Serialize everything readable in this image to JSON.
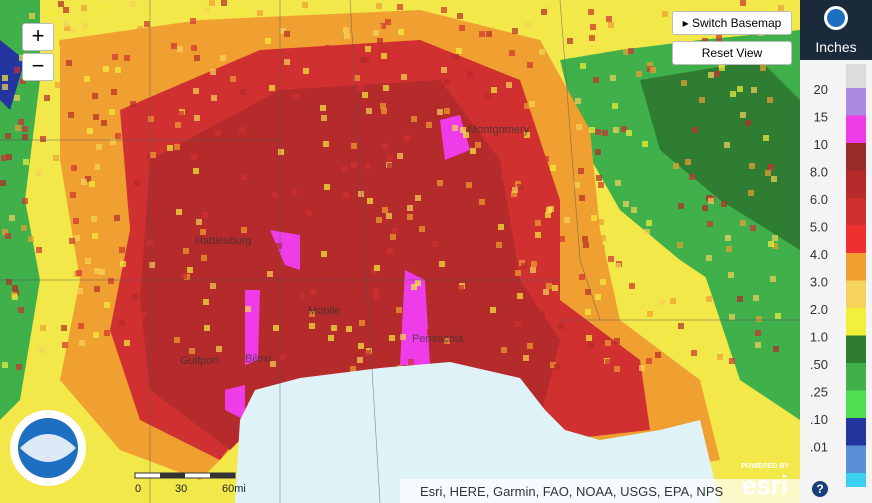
{
  "map": {
    "controls": {
      "zoom_in": "+",
      "zoom_out": "−",
      "switch_basemap": "Switch Basemap",
      "reset_view": "Reset View"
    },
    "cities": [
      {
        "label": "Hattiesburg"
      },
      {
        "label": "Mobile"
      },
      {
        "label": "Pensacola"
      },
      {
        "label": "Gulfport"
      },
      {
        "label": "Biloxi"
      },
      {
        "label": "Montgomery"
      }
    ],
    "scale_bar": {
      "labels": [
        "0",
        "30",
        "60mi"
      ]
    },
    "attribution": "Esri, HERE, Garmin, FAO, NOAA, USGS, EPA, NPS",
    "powered_by": "POWERED BY",
    "esri": "esri"
  },
  "legend": {
    "unit": "Inches",
    "help": "?",
    "items": [
      {
        "label": "20",
        "color": "#a98ae0"
      },
      {
        "label": "15",
        "color": "#ee3ce8"
      },
      {
        "label": "10",
        "color": "#9a2a2a"
      },
      {
        "label": "8.0",
        "color": "#b52a2a"
      },
      {
        "label": "6.0",
        "color": "#d03030"
      },
      {
        "label": "5.0",
        "color": "#f03030"
      },
      {
        "label": "4.0",
        "color": "#f0a030"
      },
      {
        "label": "3.0",
        "color": "#f6d35a"
      },
      {
        "label": "2.0",
        "color": "#f2f03a"
      },
      {
        "label": "1.0",
        "color": "#2e7d32"
      },
      {
        "label": ".50",
        "color": "#3fb04a"
      },
      {
        "label": ".25",
        "color": "#4ee04e"
      },
      {
        "label": ".10",
        "color": "#2535a0"
      },
      {
        "label": ".01",
        "color": "#5b8fd6"
      }
    ]
  }
}
